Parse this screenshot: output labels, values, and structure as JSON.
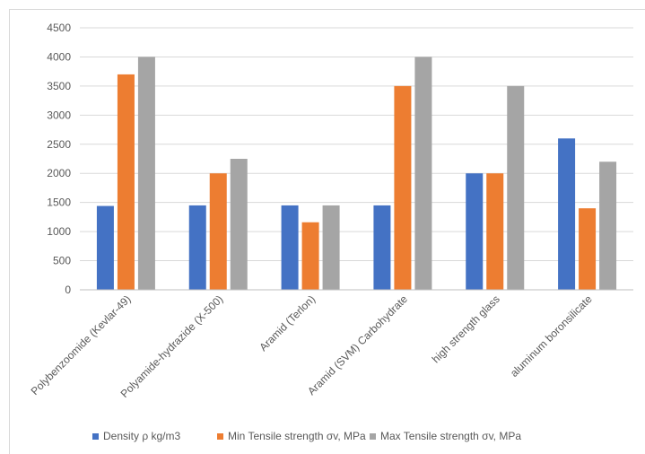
{
  "chart_data": {
    "type": "bar",
    "categories": [
      "Polybenzoomide (Kevlar-49)",
      "Polyamide-hydrazide (X-500)",
      "Aramid (Terlon)",
      "Aramid (SVM) Carbohydrate",
      "high strength glass",
      "aluminum boronsilicate"
    ],
    "series": [
      {
        "name": "Density ρ kg/m3",
        "values": [
          1440,
          1450,
          1450,
          1450,
          2000,
          2600
        ]
      },
      {
        "name": "Min Tensile strength σv, MPa",
        "values": [
          3700,
          2000,
          1160,
          3500,
          2000,
          1400
        ]
      },
      {
        "name": "Max Tensile strength σv, MPa",
        "values": [
          4000,
          2250,
          1450,
          4000,
          3500,
          2200
        ]
      }
    ],
    "colors": [
      "#4472c4",
      "#ed7d31",
      "#a5a5a5"
    ],
    "ylim": [
      0,
      4500
    ],
    "yticks": [
      0,
      500,
      1000,
      1500,
      2000,
      2500,
      3000,
      3500,
      4000,
      4500
    ],
    "grid": true,
    "legend_position": "bottom"
  }
}
